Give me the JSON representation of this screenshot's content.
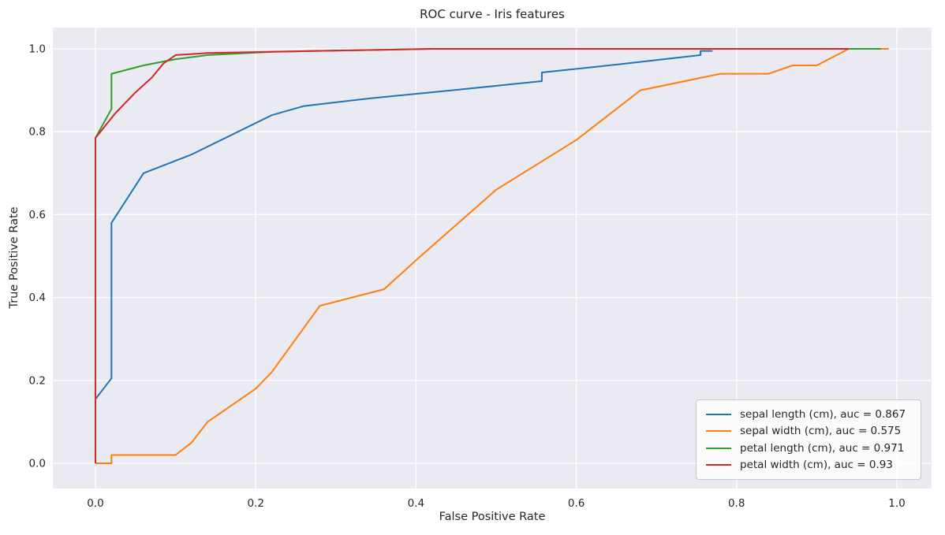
{
  "chart_data": {
    "type": "line",
    "title": "ROC curve - Iris features",
    "xlabel": "False Positive Rate",
    "ylabel": "True Positive Rate",
    "x_ticks": [
      "0.0",
      "0.2",
      "0.4",
      "0.6",
      "0.8",
      "1.0"
    ],
    "y_ticks": [
      "0.0",
      "0.2",
      "0.4",
      "0.6",
      "0.8",
      "1.0"
    ],
    "xlim": [
      -0.053,
      1.043
    ],
    "ylim": [
      -0.061,
      1.051
    ],
    "grid": true,
    "legend_position": "lower right",
    "plot_bg": "#eaeaf2",
    "grid_color": "#ffffff",
    "text_color": "#262626",
    "series": [
      {
        "name": "sepal length (cm), auc = 0.867",
        "auc": 0.867,
        "color": "#1f77b4",
        "points": [
          [
            0,
            0
          ],
          [
            0,
            0.155
          ],
          [
            0.02,
            0.205
          ],
          [
            0.02,
            0.58
          ],
          [
            0.06,
            0.7
          ],
          [
            0.12,
            0.745
          ],
          [
            0.22,
            0.84
          ],
          [
            0.26,
            0.862
          ],
          [
            0.34,
            0.88
          ],
          [
            0.445,
            0.9
          ],
          [
            0.557,
            0.922
          ],
          [
            0.557,
            0.943
          ],
          [
            0.65,
            0.962
          ],
          [
            0.755,
            0.985
          ],
          [
            0.755,
            0.995
          ],
          [
            0.77,
            0.995
          ]
        ]
      },
      {
        "name": "sepal width (cm), auc = 0.575",
        "auc": 0.575,
        "color": "#ff7f0e",
        "points": [
          [
            0,
            0
          ],
          [
            0.02,
            0
          ],
          [
            0.02,
            0.02
          ],
          [
            0.1,
            0.02
          ],
          [
            0.12,
            0.05
          ],
          [
            0.14,
            0.1
          ],
          [
            0.2,
            0.18
          ],
          [
            0.22,
            0.22
          ],
          [
            0.28,
            0.38
          ],
          [
            0.36,
            0.42
          ],
          [
            0.4,
            0.49
          ],
          [
            0.5,
            0.66
          ],
          [
            0.6,
            0.78
          ],
          [
            0.68,
            0.9
          ],
          [
            0.78,
            0.94
          ],
          [
            0.84,
            0.94
          ],
          [
            0.87,
            0.96
          ],
          [
            0.9,
            0.96
          ],
          [
            0.94,
            1.0
          ],
          [
            0.99,
            1.0
          ]
        ]
      },
      {
        "name": "petal length (cm), auc = 0.971",
        "auc": 0.971,
        "color": "#2ca02c",
        "points": [
          [
            0,
            0
          ],
          [
            0,
            0.785
          ],
          [
            0.02,
            0.855
          ],
          [
            0.02,
            0.94
          ],
          [
            0.06,
            0.96
          ],
          [
            0.1,
            0.975
          ],
          [
            0.14,
            0.985
          ],
          [
            0.22,
            0.993
          ],
          [
            0.42,
            1.0
          ],
          [
            0.98,
            1.0
          ]
        ]
      },
      {
        "name": "petal width (cm), auc = 0.93",
        "auc": 0.93,
        "color": "#d62728",
        "points": [
          [
            0,
            0
          ],
          [
            0,
            0.785
          ],
          [
            0.025,
            0.845
          ],
          [
            0.05,
            0.895
          ],
          [
            0.07,
            0.93
          ],
          [
            0.085,
            0.965
          ],
          [
            0.1,
            0.985
          ],
          [
            0.14,
            0.99
          ],
          [
            0.22,
            0.993
          ],
          [
            0.42,
            1.0
          ],
          [
            0.94,
            1.0
          ]
        ]
      }
    ]
  }
}
